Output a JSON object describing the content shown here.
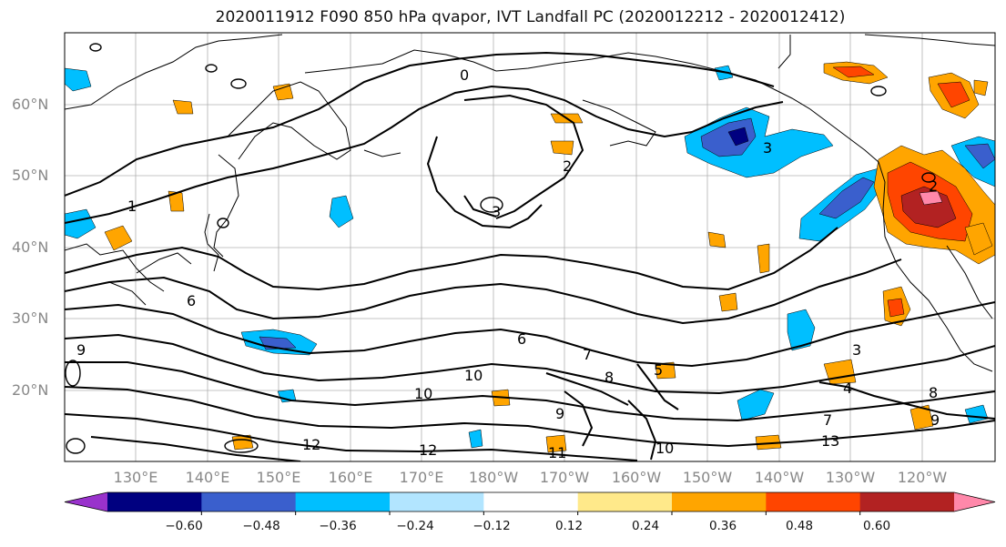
{
  "title": "2020011912 F090 850 hPa qvapor, IVT Landfall PC (2020012212 - 2020012412)",
  "lat_ticks": [
    "60°N",
    "50°N",
    "40°N",
    "30°N",
    "20°N"
  ],
  "lon_ticks": [
    "130°E",
    "140°E",
    "150°E",
    "160°E",
    "170°E",
    "180°W",
    "170°W",
    "160°W",
    "150°W",
    "140°W",
    "130°W",
    "120°W"
  ],
  "colorbar": {
    "ticks": [
      "−0.60",
      "−0.48",
      "−0.36",
      "−0.24",
      "−0.12",
      "0.12",
      "0.24",
      "0.36",
      "0.48",
      "0.60"
    ],
    "colors": [
      "#9932cc",
      "#000080",
      "#3a5fcd",
      "#00bfff",
      "#b2e5ff",
      "#ffffff",
      "#ffe98a",
      "#ffa500",
      "#ff4500",
      "#b22222",
      "#ff88aa"
    ]
  },
  "contour_labels": [
    "0",
    "1",
    "2",
    "3",
    "3",
    "6",
    "6",
    "9",
    "10",
    "7",
    "8",
    "9",
    "12",
    "11",
    "13",
    "12",
    "10",
    "2",
    "3",
    "5",
    "7",
    "8",
    "9",
    "10",
    "4"
  ]
}
